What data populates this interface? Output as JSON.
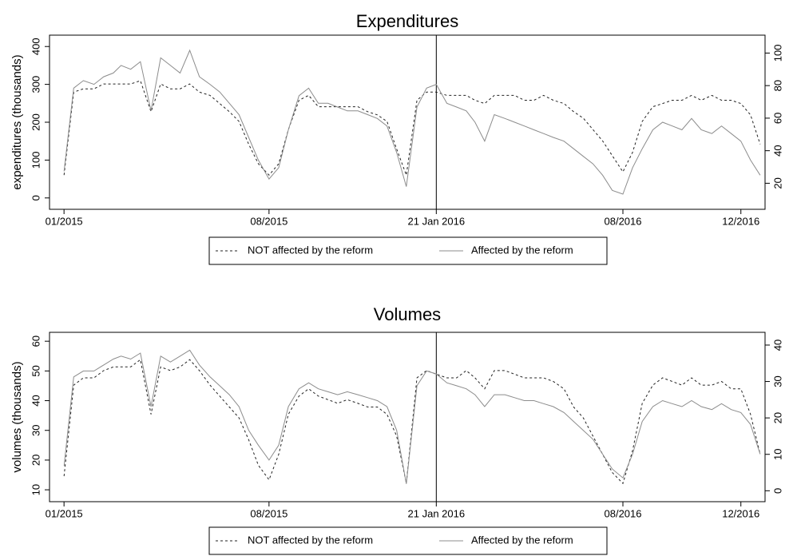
{
  "chart_data": [
    {
      "type": "line",
      "title": "Expenditures",
      "y_label": "expenditures (thousands)",
      "x": [
        "2015-01-01",
        "2015-01-11",
        "2015-01-21",
        "2015-02-01",
        "2015-02-11",
        "2015-02-21",
        "2015-03-01",
        "2015-03-11",
        "2015-03-21",
        "2015-04-01",
        "2015-04-11",
        "2015-04-21",
        "2015-05-01",
        "2015-05-11",
        "2015-05-21",
        "2015-06-01",
        "2015-06-11",
        "2015-06-21",
        "2015-07-01",
        "2015-07-11",
        "2015-07-21",
        "2015-08-01",
        "2015-08-11",
        "2015-08-21",
        "2015-09-01",
        "2015-09-11",
        "2015-09-21",
        "2015-10-01",
        "2015-10-11",
        "2015-10-21",
        "2015-11-01",
        "2015-11-11",
        "2015-11-21",
        "2015-12-01",
        "2015-12-11",
        "2015-12-21",
        "2016-01-01",
        "2016-01-11",
        "2016-01-21",
        "2016-02-01",
        "2016-02-11",
        "2016-02-21",
        "2016-03-01",
        "2016-03-11",
        "2016-03-21",
        "2016-04-01",
        "2016-04-11",
        "2016-04-21",
        "2016-05-01",
        "2016-05-11",
        "2016-05-21",
        "2016-06-01",
        "2016-06-11",
        "2016-06-21",
        "2016-07-01",
        "2016-07-11",
        "2016-07-21",
        "2016-08-01",
        "2016-08-11",
        "2016-08-21",
        "2016-09-01",
        "2016-09-11",
        "2016-09-21",
        "2016-10-01",
        "2016-10-11",
        "2016-10-21",
        "2016-11-01",
        "2016-11-11",
        "2016-11-21",
        "2016-12-01",
        "2016-12-11",
        "2016-12-21"
      ],
      "xlim": [
        "2014-12-17",
        "2016-12-26"
      ],
      "xticks": [
        {
          "value": "2015-01-01",
          "label": "01/2015"
        },
        {
          "value": "2015-08-01",
          "label": "08/2015"
        },
        {
          "value": "2016-01-21",
          "label": "21 Jan 2016"
        },
        {
          "value": "2016-08-01",
          "label": "08/2016"
        },
        {
          "value": "2016-12-01",
          "label": "12/2016"
        }
      ],
      "ylim": [
        -30,
        430
      ],
      "yticks": [
        0,
        100,
        200,
        300,
        400
      ],
      "y2lim": [
        4,
        111
      ],
      "y2ticks": [
        20,
        40,
        60,
        80,
        100
      ],
      "series": [
        {
          "name": "NOT affected by the reform",
          "color": "#222222",
          "dash": true,
          "axis": "y2",
          "values": [
            25,
            76,
            78,
            78,
            81,
            81,
            81,
            81,
            83,
            64,
            81,
            78,
            78,
            81,
            76,
            74,
            69,
            64,
            58,
            44,
            32,
            25,
            32,
            53,
            71,
            74,
            67,
            67,
            67,
            67,
            67,
            64,
            62,
            58,
            41,
            25,
            71,
            76,
            76,
            74,
            74,
            74,
            71,
            69,
            74,
            74,
            74,
            71,
            71,
            74,
            71,
            69,
            64,
            60,
            53,
            46,
            37,
            27,
            39,
            58,
            67,
            69,
            71,
            71,
            74,
            71,
            74,
            71,
            71,
            69,
            62,
            44
          ]
        },
        {
          "name": "Affected by the reform",
          "color": "#8c8c8c",
          "dash": false,
          "values": [
            70,
            290,
            310,
            300,
            320,
            330,
            350,
            340,
            360,
            230,
            370,
            350,
            330,
            390,
            320,
            300,
            280,
            250,
            220,
            160,
            100,
            50,
            80,
            180,
            270,
            290,
            250,
            250,
            240,
            230,
            230,
            220,
            210,
            190,
            120,
            30,
            240,
            290,
            300,
            250,
            240,
            230,
            200,
            150,
            220,
            210,
            200,
            190,
            180,
            170,
            160,
            150,
            130,
            110,
            90,
            60,
            20,
            10,
            80,
            130,
            180,
            200,
            190,
            180,
            210,
            180,
            170,
            190,
            170,
            150,
            100,
            60
          ]
        }
      ]
    },
    {
      "type": "line",
      "title": "Volumes",
      "y_label": "volumes (thousands)",
      "x": [
        "2015-01-01",
        "2015-01-11",
        "2015-01-21",
        "2015-02-01",
        "2015-02-11",
        "2015-02-21",
        "2015-03-01",
        "2015-03-11",
        "2015-03-21",
        "2015-04-01",
        "2015-04-11",
        "2015-04-21",
        "2015-05-01",
        "2015-05-11",
        "2015-05-21",
        "2015-06-01",
        "2015-06-11",
        "2015-06-21",
        "2015-07-01",
        "2015-07-11",
        "2015-07-21",
        "2015-08-01",
        "2015-08-11",
        "2015-08-21",
        "2015-09-01",
        "2015-09-11",
        "2015-09-21",
        "2015-10-01",
        "2015-10-11",
        "2015-10-21",
        "2015-11-01",
        "2015-11-11",
        "2015-11-21",
        "2015-12-01",
        "2015-12-11",
        "2015-12-21",
        "2016-01-01",
        "2016-01-11",
        "2016-01-21",
        "2016-02-01",
        "2016-02-11",
        "2016-02-21",
        "2016-03-01",
        "2016-03-11",
        "2016-03-21",
        "2016-04-01",
        "2016-04-11",
        "2016-04-21",
        "2016-05-01",
        "2016-05-11",
        "2016-05-21",
        "2016-06-01",
        "2016-06-11",
        "2016-06-21",
        "2016-07-01",
        "2016-07-11",
        "2016-07-21",
        "2016-08-01",
        "2016-08-11",
        "2016-08-21",
        "2016-09-01",
        "2016-09-11",
        "2016-09-21",
        "2016-10-01",
        "2016-10-11",
        "2016-10-21",
        "2016-11-01",
        "2016-11-11",
        "2016-11-21",
        "2016-12-01",
        "2016-12-11",
        "2016-12-21"
      ],
      "xlim": [
        "2014-12-17",
        "2016-12-26"
      ],
      "xticks": [
        {
          "value": "2015-01-01",
          "label": "01/2015"
        },
        {
          "value": "2015-08-01",
          "label": "08/2015"
        },
        {
          "value": "2016-01-21",
          "label": "21 Jan 2016"
        },
        {
          "value": "2016-08-01",
          "label": "08/2016"
        },
        {
          "value": "2016-12-01",
          "label": "12/2016"
        }
      ],
      "ylim": [
        6,
        63
      ],
      "yticks": [
        10,
        20,
        30,
        40,
        50,
        60
      ],
      "y2lim": [
        -3,
        43.5
      ],
      "y2ticks": [
        0,
        10,
        20,
        30,
        40
      ],
      "series": [
        {
          "name": "NOT affected by the reform",
          "color": "#222222",
          "dash": true,
          "axis": "y2",
          "values": [
            4,
            29,
            31,
            31,
            33,
            34,
            34,
            34,
            36,
            21,
            34,
            33,
            34,
            36,
            33,
            29,
            26,
            23,
            20,
            14,
            7,
            3,
            10,
            21,
            26,
            28,
            26,
            25,
            24,
            25,
            24,
            23,
            23,
            21,
            15,
            2,
            31,
            33,
            32,
            31,
            31,
            33,
            31,
            28,
            33,
            33,
            32,
            31,
            31,
            31,
            30,
            28,
            23,
            20,
            15,
            10,
            5,
            2,
            11,
            24,
            29,
            31,
            30,
            29,
            31,
            29,
            29,
            30,
            28,
            28,
            21,
            10
          ]
        },
        {
          "name": "Affected by the reform",
          "color": "#8c8c8c",
          "dash": false,
          "values": [
            18,
            48,
            50,
            50,
            52,
            54,
            55,
            54,
            56,
            38,
            55,
            53,
            55,
            57,
            52,
            48,
            45,
            42,
            38,
            30,
            25,
            20,
            25,
            38,
            44,
            46,
            44,
            43,
            42,
            43,
            42,
            41,
            40,
            38,
            30,
            12,
            45,
            50,
            49,
            46,
            45,
            44,
            42,
            38,
            42,
            42,
            41,
            40,
            40,
            39,
            38,
            36,
            33,
            30,
            27,
            22,
            17,
            14,
            22,
            33,
            38,
            40,
            39,
            38,
            40,
            38,
            37,
            39,
            37,
            36,
            32,
            22
          ]
        }
      ]
    }
  ]
}
